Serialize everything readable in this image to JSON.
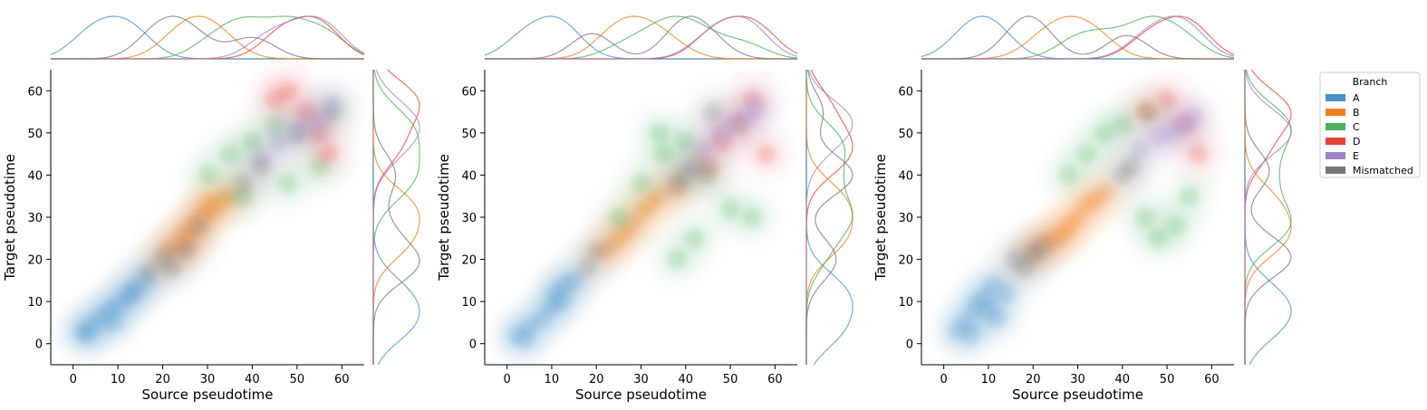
{
  "chart_data": [
    {
      "type": "scatter",
      "xlabel": "Source pseudotime",
      "ylabel": "Target pseudotime",
      "xlim": [
        -5,
        65
      ],
      "ylim": [
        -5,
        65
      ],
      "xticks": [
        0,
        10,
        20,
        30,
        40,
        50,
        60
      ],
      "yticks": [
        0,
        10,
        20,
        30,
        40,
        50,
        60
      ],
      "grid": false,
      "series": [
        {
          "name": "A",
          "color": "#4a90c8",
          "x": [
            2,
            4,
            6,
            8,
            10,
            12,
            14,
            16,
            3,
            9,
            13
          ],
          "y": [
            3,
            4,
            6,
            8,
            9,
            11,
            13,
            15,
            2,
            5,
            12
          ]
        },
        {
          "name": "B",
          "color": "#f07f1f",
          "x": [
            21,
            23,
            25,
            27,
            29,
            31,
            33,
            35,
            26,
            30
          ],
          "y": [
            22,
            23,
            26,
            28,
            30,
            32,
            34,
            35,
            24,
            33
          ]
        },
        {
          "name": "C",
          "color": "#4caf5c",
          "x": [
            30,
            35,
            40,
            45,
            50,
            55,
            58,
            38,
            48
          ],
          "y": [
            40,
            45,
            48,
            52,
            50,
            42,
            55,
            35,
            38
          ]
        },
        {
          "name": "D",
          "color": "#e8423b",
          "x": [
            45,
            48,
            52,
            55,
            57
          ],
          "y": [
            58,
            60,
            55,
            50,
            45
          ]
        },
        {
          "name": "E",
          "color": "#9a87c7",
          "x": [
            42,
            46,
            50,
            53,
            56,
            58
          ],
          "y": [
            44,
            48,
            50,
            52,
            54,
            57
          ]
        },
        {
          "name": "Mismatched",
          "color": "#777777",
          "x": [
            17,
            20,
            22,
            25,
            38,
            42,
            28
          ],
          "y": [
            17,
            20,
            18,
            22,
            38,
            42,
            28
          ]
        }
      ]
    },
    {
      "type": "scatter",
      "xlabel": "Source pseudotime",
      "ylabel": "Target pseudotime",
      "xlim": [
        -5,
        65
      ],
      "ylim": [
        -5,
        65
      ],
      "xticks": [
        0,
        10,
        20,
        30,
        40,
        50,
        60
      ],
      "yticks": [
        0,
        10,
        20,
        30,
        40,
        50,
        60
      ],
      "grid": false,
      "series": [
        {
          "name": "A",
          "color": "#4a90c8",
          "x": [
            2,
            5,
            8,
            10,
            11,
            13,
            15,
            4,
            12
          ],
          "y": [
            2,
            4,
            6,
            9,
            12,
            14,
            15,
            1,
            10
          ]
        },
        {
          "name": "B",
          "color": "#f07f1f",
          "x": [
            22,
            24,
            26,
            28,
            30,
            32,
            34,
            38
          ],
          "y": [
            22,
            24,
            26,
            28,
            31,
            33,
            35,
            37
          ]
        },
        {
          "name": "C",
          "color": "#4caf5c",
          "x": [
            25,
            30,
            35,
            40,
            45,
            50,
            55,
            42,
            38,
            34
          ],
          "y": [
            30,
            38,
            45,
            48,
            40,
            32,
            30,
            25,
            20,
            50
          ]
        },
        {
          "name": "D",
          "color": "#e8423b",
          "x": [
            45,
            48,
            52,
            55,
            58
          ],
          "y": [
            42,
            48,
            52,
            58,
            45
          ]
        },
        {
          "name": "E",
          "color": "#9a87c7",
          "x": [
            44,
            48,
            51,
            54,
            56
          ],
          "y": [
            46,
            50,
            52,
            54,
            56
          ]
        },
        {
          "name": "Mismatched",
          "color": "#777777",
          "x": [
            18,
            20,
            38,
            40,
            42,
            46
          ],
          "y": [
            18,
            22,
            38,
            40,
            42,
            55
          ]
        }
      ]
    },
    {
      "type": "scatter",
      "xlabel": "Source pseudotime",
      "ylabel": "Target pseudotime",
      "xlim": [
        -5,
        65
      ],
      "ylim": [
        -5,
        65
      ],
      "xticks": [
        0,
        10,
        20,
        30,
        40,
        50,
        60
      ],
      "yticks": [
        0,
        10,
        20,
        30,
        40,
        50,
        60
      ],
      "grid": false,
      "series": [
        {
          "name": "A",
          "color": "#4a90c8",
          "x": [
            3,
            5,
            7,
            9,
            10,
            12,
            14,
            6,
            11
          ],
          "y": [
            3,
            5,
            9,
            11,
            8,
            6,
            12,
            2,
            14
          ]
        },
        {
          "name": "B",
          "color": "#f07f1f",
          "x": [
            20,
            23,
            25,
            28,
            30,
            32,
            34,
            36,
            27
          ],
          "y": [
            22,
            24,
            25,
            28,
            30,
            33,
            34,
            36,
            26
          ]
        },
        {
          "name": "C",
          "color": "#4caf5c",
          "x": [
            28,
            32,
            36,
            40,
            45,
            48,
            52,
            55,
            46
          ],
          "y": [
            40,
            45,
            50,
            52,
            30,
            25,
            28,
            35,
            55
          ]
        },
        {
          "name": "D",
          "color": "#e8423b",
          "x": [
            45,
            50,
            54,
            57
          ],
          "y": [
            55,
            58,
            52,
            45
          ]
        },
        {
          "name": "E",
          "color": "#9a87c7",
          "x": [
            44,
            48,
            51,
            54,
            56
          ],
          "y": [
            46,
            49,
            50,
            52,
            54
          ]
        },
        {
          "name": "Mismatched",
          "color": "#777777",
          "x": [
            16,
            18,
            20,
            22,
            40,
            42
          ],
          "y": [
            20,
            18,
            21,
            23,
            40,
            42
          ]
        }
      ]
    }
  ],
  "legend": {
    "title": "Branch",
    "items": [
      {
        "label": "A",
        "color": "#4a90c8"
      },
      {
        "label": "B",
        "color": "#f07f1f"
      },
      {
        "label": "C",
        "color": "#4caf5c"
      },
      {
        "label": "D",
        "color": "#e8423b"
      },
      {
        "label": "E",
        "color": "#9a87c7"
      },
      {
        "label": "Mismatched",
        "color": "#777777"
      }
    ]
  }
}
